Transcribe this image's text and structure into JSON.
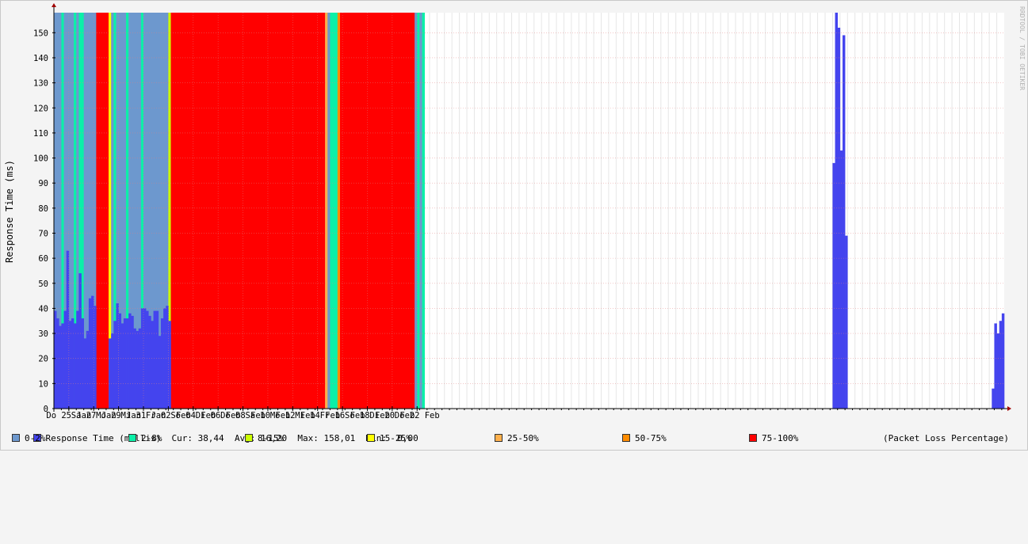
{
  "vertical_label": "RRDTOOL / TOBI OETIKER",
  "chart_data": {
    "type": "bar",
    "ylabel": "Response Time (ms)",
    "xlabel": "",
    "ylim": [
      0,
      158
    ],
    "y_ticks": [
      0,
      10,
      20,
      30,
      40,
      50,
      60,
      70,
      80,
      90,
      100,
      110,
      120,
      130,
      140,
      150
    ],
    "x_tick_labels": [
      "Do 25 Jan",
      "Sa 27 Jan",
      "Mo 29 Jan",
      "Mi 31 Jan",
      "Fr 02 Feb",
      "So 04 Feb",
      "Di 06 Feb",
      "Do 08 Feb",
      "Sa 10 Feb",
      "Mo 12 Feb",
      "Mi 14 Feb",
      "Fr 16 Feb",
      "So 18 Feb",
      "Di 20 Feb",
      "Do 22 Feb"
    ],
    "grid": true,
    "series": [
      {
        "name": "Response Time (millis)",
        "color": "#4444ee",
        "values": [
          39,
          36,
          33,
          34,
          39,
          63,
          35,
          36,
          34,
          39,
          54,
          36,
          28,
          31,
          44,
          45,
          41,
          0,
          0,
          0,
          0,
          0,
          28,
          30,
          35,
          42,
          38,
          34,
          36,
          36,
          38,
          37,
          32,
          31,
          32,
          40,
          40,
          39,
          37,
          35,
          39,
          39,
          29,
          36,
          40,
          41,
          35,
          0,
          0,
          0,
          0,
          0,
          0,
          0,
          0,
          0,
          0,
          0,
          0,
          0,
          0,
          0,
          0,
          0,
          0,
          0,
          0,
          0,
          0,
          0,
          0,
          0,
          0,
          0,
          0,
          0,
          0,
          0,
          0,
          0,
          0,
          0,
          0,
          0,
          0,
          0,
          0,
          0,
          0,
          0,
          0,
          0,
          0,
          0,
          0,
          0,
          0,
          0,
          0,
          0,
          0,
          0,
          0,
          0,
          0,
          0,
          0,
          0,
          0,
          0,
          0,
          0,
          0,
          0,
          0,
          0,
          0,
          0,
          0,
          0,
          0,
          0,
          0,
          0,
          0,
          0,
          0,
          0,
          0,
          0,
          0,
          0,
          0,
          0,
          0,
          0,
          0,
          0,
          0,
          0,
          0,
          0,
          0,
          0,
          0,
          0,
          0,
          0,
          0,
          0,
          0,
          0,
          0,
          0,
          0,
          0,
          0,
          0,
          0,
          0,
          0,
          0,
          0,
          0,
          0,
          0,
          0,
          0,
          0,
          0,
          0,
          0,
          0,
          0,
          0,
          0,
          0,
          0,
          0,
          0,
          0,
          0,
          0,
          0,
          0,
          0,
          0,
          0,
          0,
          0,
          0,
          0,
          0,
          0,
          0,
          0,
          0,
          0,
          0,
          0,
          0,
          0,
          0,
          0,
          0,
          0,
          0,
          0,
          0,
          0,
          0,
          0,
          0,
          0,
          0,
          0,
          0,
          0,
          0,
          0,
          0,
          0,
          0,
          0,
          0,
          0,
          0,
          0,
          0,
          0,
          0,
          0,
          0,
          0,
          0,
          0,
          0,
          0,
          0,
          0,
          0,
          0,
          0,
          0,
          0,
          0,
          0,
          0,
          0,
          0,
          0,
          0,
          0,
          0,
          0,
          0,
          0,
          0,
          0,
          0,
          0,
          0,
          0,
          0,
          0,
          0,
          0,
          0,
          0,
          0,
          0,
          0,
          0,
          0,
          0,
          0,
          0,
          0,
          0,
          0,
          0,
          0,
          0,
          0,
          0,
          0,
          0,
          0,
          0,
          0,
          0,
          0,
          0,
          0,
          0,
          0,
          0,
          0,
          0,
          0,
          0,
          0,
          0,
          0,
          0,
          0,
          0,
          0,
          0,
          0,
          0,
          0,
          0,
          98,
          158,
          152,
          103,
          149,
          69,
          0,
          0,
          0,
          0,
          0,
          0,
          0,
          0,
          0,
          0,
          0,
          0,
          0,
          0,
          0,
          0,
          0,
          0,
          0,
          0,
          0,
          0,
          0,
          0,
          0,
          0,
          0,
          0,
          0,
          0,
          0,
          0,
          0,
          0,
          0,
          0,
          0,
          0,
          0,
          0,
          0,
          0,
          0,
          0,
          0,
          0,
          0,
          0,
          0,
          0,
          0,
          0,
          0,
          0,
          0,
          0,
          0,
          0,
          8,
          34,
          30,
          35,
          38
        ]
      }
    ],
    "packet_loss_bins": [
      "0-2%",
      "2-8%",
      "8-15%",
      "15-25%",
      "25-50%",
      "50-75%",
      "75-100%"
    ],
    "packet_loss_colors": [
      "#6d98ce",
      "#0bf0a8",
      "#ccff00",
      "#ffff00",
      "#ffb04c",
      "#ff8c00",
      "#ff0000"
    ],
    "packet_loss_ranges": [
      {
        "start": 0,
        "end": 3,
        "bin": 0
      },
      {
        "start": 3,
        "end": 4,
        "bin": 1
      },
      {
        "start": 4,
        "end": 8,
        "bin": 0
      },
      {
        "start": 8,
        "end": 9,
        "bin": 1
      },
      {
        "start": 9,
        "end": 10,
        "bin": 0
      },
      {
        "start": 10,
        "end": 12,
        "bin": 1
      },
      {
        "start": 12,
        "end": 17,
        "bin": 0
      },
      {
        "start": 17,
        "end": 22,
        "bin": 6
      },
      {
        "start": 22,
        "end": 23,
        "bin": 3
      },
      {
        "start": 23,
        "end": 24,
        "bin": 0
      },
      {
        "start": 24,
        "end": 25,
        "bin": 1
      },
      {
        "start": 25,
        "end": 29,
        "bin": 0
      },
      {
        "start": 29,
        "end": 30,
        "bin": 1
      },
      {
        "start": 30,
        "end": 35,
        "bin": 0
      },
      {
        "start": 35,
        "end": 36,
        "bin": 1
      },
      {
        "start": 36,
        "end": 46,
        "bin": 0
      },
      {
        "start": 46,
        "end": 47,
        "bin": 2
      },
      {
        "start": 47,
        "end": 109,
        "bin": 6
      },
      {
        "start": 109,
        "end": 110,
        "bin": 4
      },
      {
        "start": 110,
        "end": 111,
        "bin": 0
      },
      {
        "start": 111,
        "end": 114,
        "bin": 1
      },
      {
        "start": 114,
        "end": 115,
        "bin": 5
      },
      {
        "start": 115,
        "end": 145,
        "bin": 6
      },
      {
        "start": 145,
        "end": 146,
        "bin": 0
      },
      {
        "start": 146,
        "end": 147,
        "bin": 1
      },
      {
        "start": 147,
        "end": 148,
        "bin": 0
      },
      {
        "start": 148,
        "end": 149,
        "bin": 1
      }
    ]
  },
  "legend": {
    "response": {
      "label": "Response Time (millis)",
      "color": "#4444ee",
      "cur": "Cur: 38,44",
      "avg": "Avg: 16,20",
      "max": "Max: 158,01",
      "min": "Min:  0,00"
    },
    "bins": [
      {
        "label": "0-2%",
        "color": "#6d98ce"
      },
      {
        "label": "2-8%",
        "color": "#0bf0a8"
      },
      {
        "label": "8-15%",
        "color": "#ccff00"
      },
      {
        "label": "15-25%",
        "color": "#ffff00"
      },
      {
        "label": "25-50%",
        "color": "#ffb04c"
      },
      {
        "label": "50-75%",
        "color": "#ff8c00"
      },
      {
        "label": "75-100%",
        "color": "#ff0000"
      }
    ],
    "packet_loss_caption": "(Packet Loss Percentage)"
  }
}
